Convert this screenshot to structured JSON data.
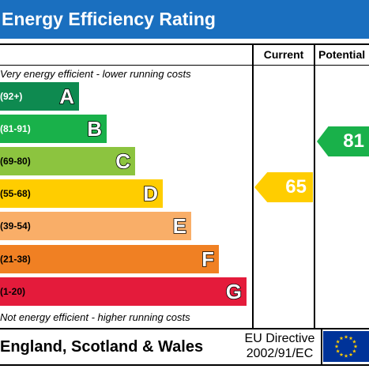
{
  "title": "Energy Efficiency Rating",
  "columns": {
    "current": "Current",
    "potential": "Potential"
  },
  "captions": {
    "top": "Very energy efficient - lower running costs",
    "bottom": "Not energy efficient - higher running costs"
  },
  "bands": [
    {
      "range": "(92+)",
      "letter": "A",
      "color": "#0e8a50"
    },
    {
      "range": "(81-91)",
      "letter": "B",
      "color": "#19b14a"
    },
    {
      "range": "(69-80)",
      "letter": "C",
      "color": "#8cc43f"
    },
    {
      "range": "(55-68)",
      "letter": "D",
      "color": "#ffcd00"
    },
    {
      "range": "(39-54)",
      "letter": "E",
      "color": "#f9ae68"
    },
    {
      "range": "(21-38)",
      "letter": "F",
      "color": "#f08023"
    },
    {
      "range": "(1-20)",
      "letter": "G",
      "color": "#e41b3b"
    }
  ],
  "ratings": {
    "current": {
      "value": "65",
      "band": "D",
      "color": "#ffcd00"
    },
    "potential": {
      "value": "81",
      "band": "B",
      "color": "#19b14a"
    }
  },
  "footer": {
    "country": "England, Scotland & Wales",
    "directive_line1": "EU Directive",
    "directive_line2": "2002/91/EC"
  },
  "flag_icon": "eu-flag-icon"
}
